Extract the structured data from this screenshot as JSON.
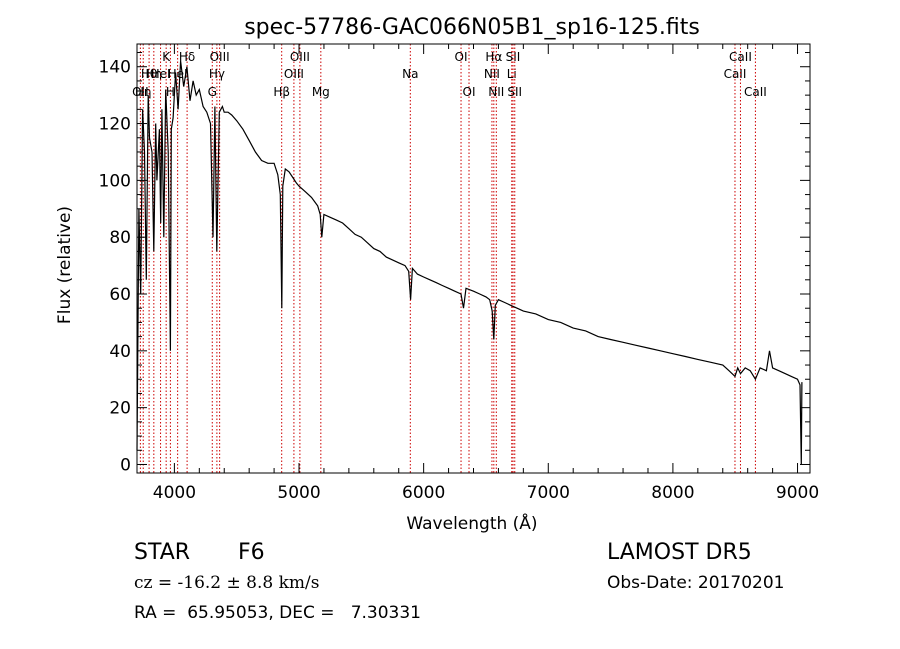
{
  "chart_data": {
    "type": "line",
    "title": "spec-57786-GAC066N05B1_sp16-125.fits",
    "xlabel": "Wavelength (Å)",
    "ylabel": "Flux (relative)",
    "xlim": [
      3700,
      9100
    ],
    "ylim": [
      -3,
      148
    ],
    "x_ticks": [
      4000,
      5000,
      6000,
      7000,
      8000,
      9000
    ],
    "y_ticks": [
      0,
      20,
      40,
      60,
      80,
      100,
      120,
      140
    ],
    "grid": false,
    "legend": "none",
    "line_color": "#000000",
    "marker_color": "#cc0000",
    "series": [
      {
        "x": [
          3700,
          3715,
          3730,
          3745,
          3760,
          3775,
          3790,
          3800,
          3820,
          3835,
          3850,
          3860,
          3880,
          3890,
          3900,
          3915,
          3930,
          3950,
          3968,
          3975,
          3990,
          4010,
          4030,
          4050,
          4075,
          4100,
          4125,
          4150,
          4175,
          4200,
          4230,
          4260,
          4290,
          4310,
          4325,
          4340,
          4360,
          4385,
          4400,
          4430,
          4460,
          4500,
          4550,
          4600,
          4650,
          4700,
          4750,
          4800,
          4830,
          4850,
          4862,
          4870,
          4890,
          4920,
          4950,
          4980,
          5000,
          5050,
          5100,
          5150,
          5170,
          5183,
          5200,
          5250,
          5300,
          5350,
          5400,
          5450,
          5500,
          5550,
          5600,
          5650,
          5700,
          5750,
          5800,
          5850,
          5880,
          5895,
          5910,
          5950,
          6000,
          6050,
          6100,
          6150,
          6200,
          6250,
          6300,
          6320,
          6340,
          6400,
          6450,
          6500,
          6530,
          6550,
          6563,
          6575,
          6600,
          6650,
          6700,
          6750,
          6800,
          6900,
          7000,
          7100,
          7200,
          7300,
          7400,
          7500,
          7600,
          7700,
          7800,
          7900,
          8000,
          8100,
          8200,
          8300,
          8400,
          8450,
          8498,
          8520,
          8542,
          8580,
          8620,
          8662,
          8700,
          8750,
          8775,
          8800,
          8850,
          8900,
          8950,
          9000,
          9020,
          9030,
          9035
        ],
        "y": [
          5,
          90,
          60,
          125,
          110,
          65,
          130,
          115,
          110,
          75,
          120,
          100,
          118,
          85,
          125,
          80,
          132,
          110,
          40,
          118,
          122,
          138,
          125,
          142,
          133,
          140,
          128,
          135,
          130,
          132,
          126,
          124,
          120,
          80,
          126,
          75,
          124,
          126,
          124,
          124,
          123,
          121,
          118,
          114,
          110,
          107,
          106,
          106,
          102,
          95,
          55,
          98,
          104,
          103,
          101,
          99,
          98,
          96,
          94,
          91,
          88,
          80,
          88,
          87,
          86,
          85,
          83,
          81,
          80,
          78,
          76,
          75,
          73,
          72,
          71,
          70,
          68,
          58,
          69,
          67,
          66,
          65,
          64,
          63,
          62,
          61,
          60,
          55,
          62,
          61,
          60,
          59,
          58,
          54,
          44,
          56,
          58,
          57,
          56,
          55,
          54,
          53,
          51,
          50,
          48,
          47,
          45,
          44,
          43,
          42,
          41,
          40,
          39,
          38,
          37,
          36,
          35,
          33,
          31,
          34,
          32,
          34,
          33,
          30,
          34,
          33,
          40,
          34,
          33,
          32,
          31,
          30,
          28,
          0,
          29
        ]
      }
    ],
    "line_markers": [
      {
        "wave": 3727,
        "label": "OII",
        "row": 3
      },
      {
        "wave": 3750,
        "label": "Hη",
        "row": 3
      },
      {
        "wave": 3797,
        "label": "Hθ",
        "row": 2
      },
      {
        "wave": 3835,
        "label": "Hη",
        "row": 2
      },
      {
        "wave": 3889,
        "label": "HeI",
        "row": 2
      },
      {
        "wave": 3934,
        "label": "K",
        "row": 1
      },
      {
        "wave": 3968,
        "label": "H",
        "row": 3
      },
      {
        "wave": 4026,
        "label": "HeI",
        "row": 2
      },
      {
        "wave": 4102,
        "label": "Hδ",
        "row": 1
      },
      {
        "wave": 4304,
        "label": "G",
        "row": 3
      },
      {
        "wave": 4341,
        "label": "Hγ",
        "row": 2
      },
      {
        "wave": 4363,
        "label": "OIII",
        "row": 1
      },
      {
        "wave": 4861,
        "label": "Hβ",
        "row": 3
      },
      {
        "wave": 4959,
        "label": "OIII",
        "row": 2
      },
      {
        "wave": 5007,
        "label": "OIII",
        "row": 1
      },
      {
        "wave": 5175,
        "label": "Mg",
        "row": 3
      },
      {
        "wave": 5893,
        "label": "Na",
        "row": 2
      },
      {
        "wave": 6300,
        "label": "OI",
        "row": 1
      },
      {
        "wave": 6364,
        "label": "OI",
        "row": 3
      },
      {
        "wave": 6548,
        "label": "NII",
        "row": 2
      },
      {
        "wave": 6563,
        "label": "Hα",
        "row": 1
      },
      {
        "wave": 6583,
        "label": "NII",
        "row": 3
      },
      {
        "wave": 6707,
        "label": "Li",
        "row": 2
      },
      {
        "wave": 6717,
        "label": "SII",
        "row": 1
      },
      {
        "wave": 6731,
        "label": "SII",
        "row": 3
      },
      {
        "wave": 8498,
        "label": "CaII",
        "row": 2
      },
      {
        "wave": 8542,
        "label": "CaII",
        "row": 1
      },
      {
        "wave": 8662,
        "label": "CaII",
        "row": 3
      }
    ]
  },
  "info": {
    "class_label": "STAR",
    "subclass": "F6",
    "survey": "LAMOST DR5",
    "cz_line": "cz = -16.2 ± 8.8 km/s",
    "obs_date": "Obs-Date: 20170201",
    "coords_line": "RA =  65.95053, DEC =   7.30331"
  }
}
